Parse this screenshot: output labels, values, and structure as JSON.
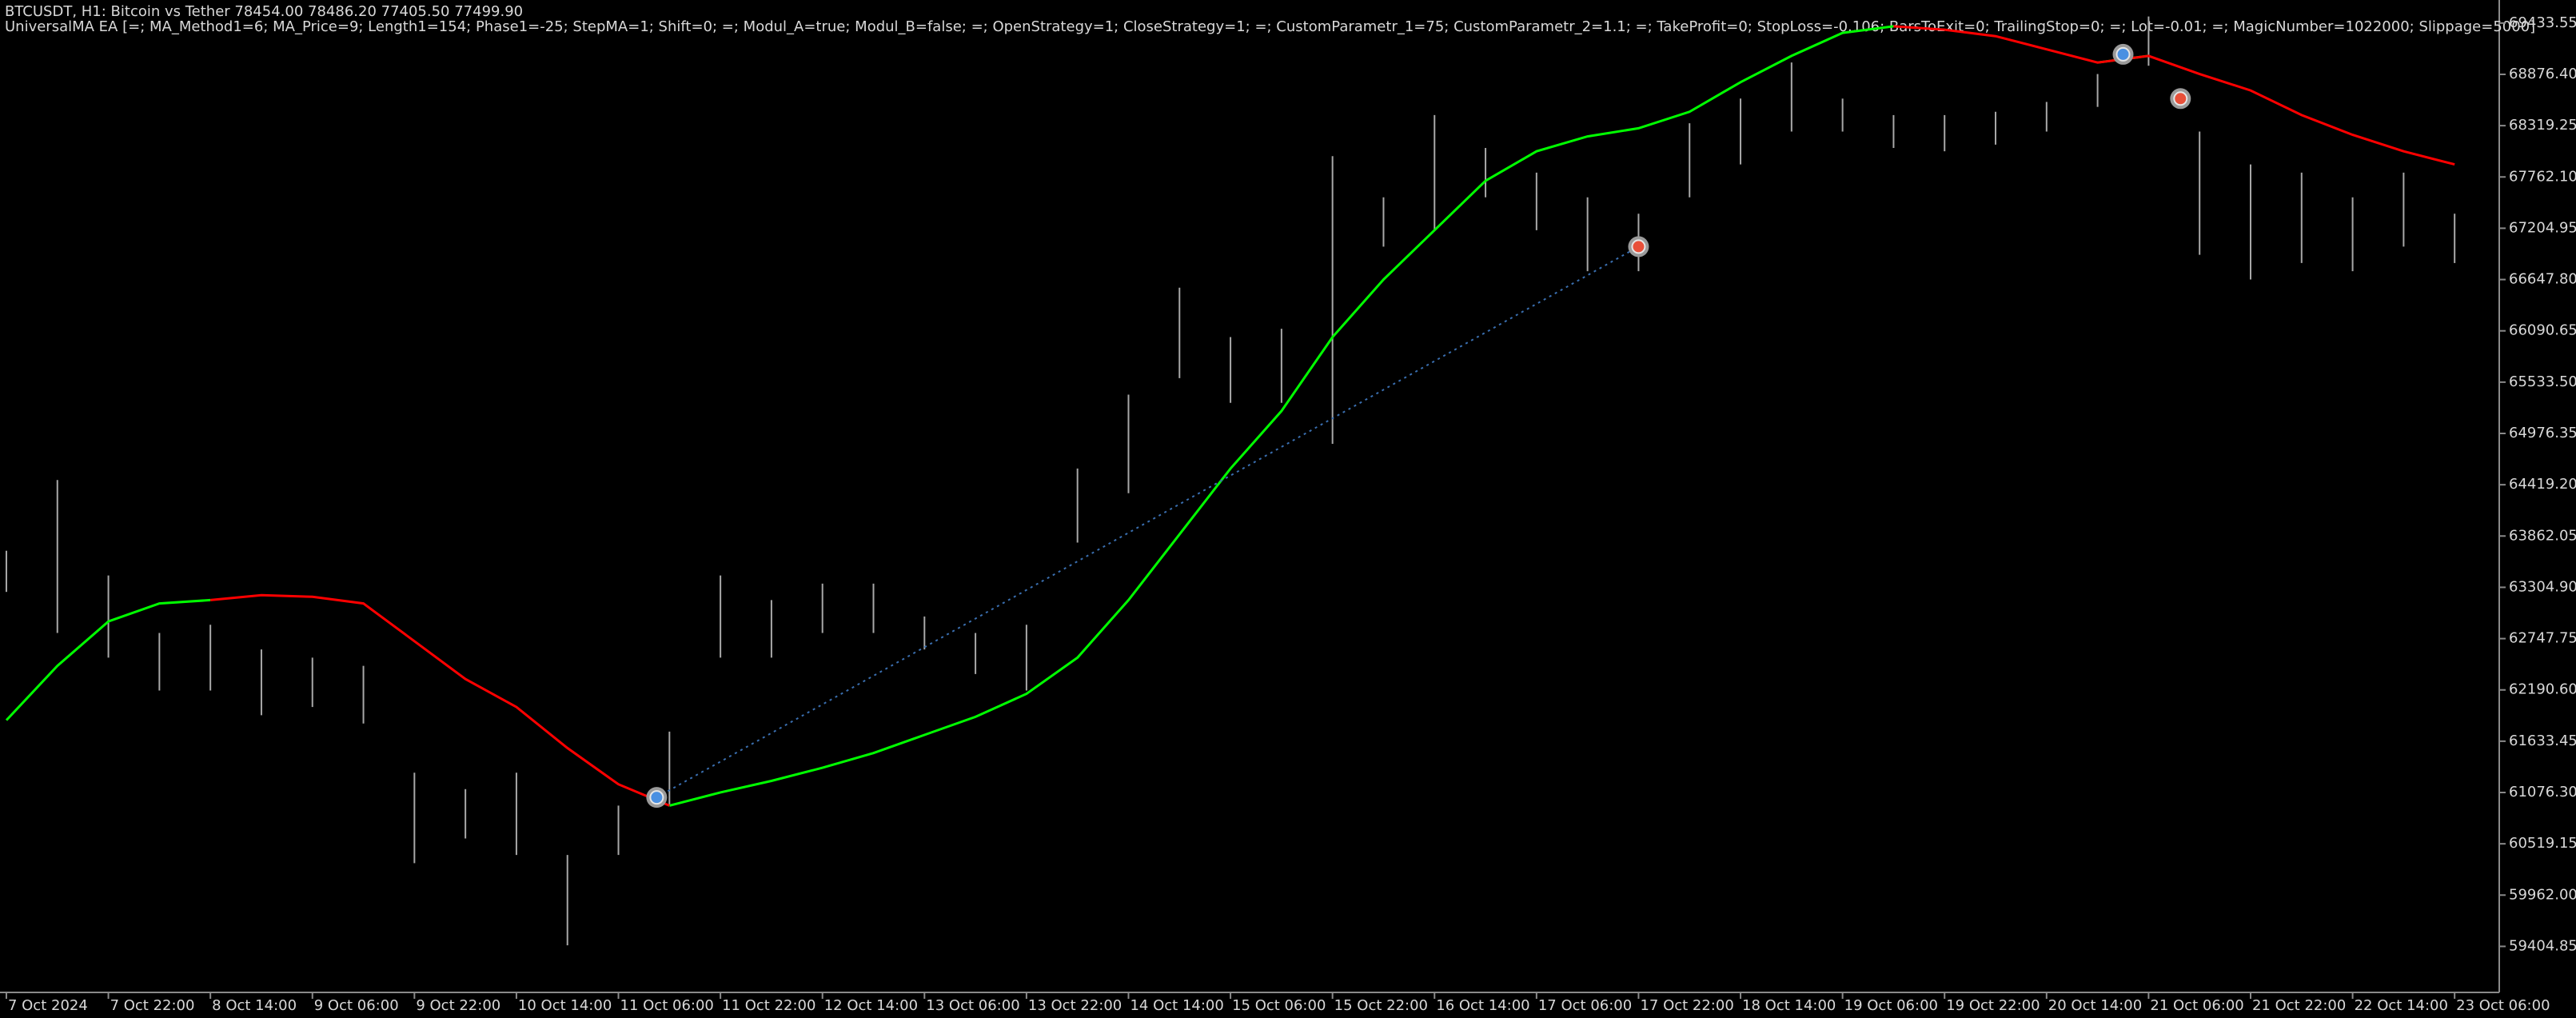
{
  "chart_data": {
    "type": "ohlc",
    "title": "BTCUSDT, H1:  Bitcoin vs Tether  78454.00 78486.20 77405.50 77499.90",
    "subtitle": "UniversalMA EA [=; MA_Method1=6; MA_Price=9; Length1=154; Phase1=-25; StepMA=1; Shift=0; =; Modul_A=true; Modul_B=false; =; OpenStrategy=1; CloseStrategy=1; =; CustomParametr_1=75; CustomParametr_2=1.1; =; TakeProfit=0; StopLoss=-0.106; BarsToExit=0; TrailingStop=0; =; Lot=-0.01; =; MagicNumber=1022000; Slippage=5000]",
    "x": [
      "2024-10-07 06:00",
      "2024-10-07 14:00",
      "2024-10-07 22:00",
      "2024-10-08 06:00",
      "2024-10-08 14:00",
      "2024-10-08 22:00",
      "2024-10-09 06:00",
      "2024-10-09 14:00",
      "2024-10-09 22:00",
      "2024-10-10 06:00",
      "2024-10-10 14:00",
      "2024-10-10 22:00",
      "2024-10-11 06:00",
      "2024-10-11 14:00",
      "2024-10-11 22:00",
      "2024-10-12 06:00",
      "2024-10-12 14:00",
      "2024-10-12 22:00",
      "2024-10-13 06:00",
      "2024-10-13 14:00",
      "2024-10-13 22:00",
      "2024-10-14 06:00",
      "2024-10-14 14:00",
      "2024-10-14 22:00",
      "2024-10-15 06:00",
      "2024-10-15 14:00",
      "2024-10-15 22:00",
      "2024-10-16 06:00",
      "2024-10-16 14:00",
      "2024-10-16 22:00",
      "2024-10-17 06:00",
      "2024-10-17 14:00",
      "2024-10-17 22:00",
      "2024-10-18 06:00",
      "2024-10-18 14:00",
      "2024-10-18 22:00",
      "2024-10-19 06:00",
      "2024-10-19 14:00",
      "2024-10-19 22:00",
      "2024-10-20 06:00",
      "2024-10-20 14:00",
      "2024-10-20 22:00",
      "2024-10-21 06:00",
      "2024-10-21 14:00",
      "2024-10-21 22:00",
      "2024-10-22 06:00",
      "2024-10-22 14:00",
      "2024-10-22 22:00",
      "2024-10-23 06:00"
    ],
    "high": [
      63702,
      64470,
      63434,
      62809,
      62898,
      62630,
      62541,
      62452,
      61291,
      61113,
      61291,
      60398,
      60934,
      61738,
      63434,
      63166,
      63345,
      63345,
      62988,
      62809,
      62898,
      64595,
      65398,
      66559,
      66023,
      66113,
      67988,
      67541,
      68434,
      68077,
      67809,
      67541,
      67363,
      68345,
      68613,
      69005,
      68613,
      68434,
      68434,
      68470,
      68577,
      68880,
      69505,
      68255,
      67898,
      67809,
      67541,
      67809,
      67363
    ],
    "low": [
      63255,
      62809,
      62541,
      62184,
      62184,
      61916,
      62005,
      61826,
      60309,
      60577,
      60398,
      59416,
      60398,
      60934,
      62541,
      62541,
      62809,
      62809,
      62630,
      62363,
      62184,
      63791,
      64327,
      65577,
      65309,
      65309,
      64863,
      67005,
      67184,
      67541,
      67184,
      66738,
      66738,
      67541,
      67898,
      68255,
      68255,
      68077,
      68041,
      68113,
      68255,
      68523,
      68970,
      66916,
      66648,
      66827,
      66738,
      67005,
      66827
    ],
    "bar_color": "#a8a8a8",
    "ma_up": {
      "color": "#00ff00",
      "values": [
        61862,
        62452,
        62934,
        63130,
        63166,
        null,
        null,
        null,
        null,
        null,
        null,
        null,
        null,
        60934,
        61077,
        61202,
        61345,
        61505,
        61702,
        61898,
        62148,
        62541,
        63166,
        63880,
        64595,
        65220,
        66023,
        66648,
        67184,
        67720,
        68041,
        68202,
        68291,
        68470,
        68791,
        69077,
        69327,
        69398,
        null,
        null,
        null,
        69005,
        69077,
        null,
        null,
        null,
        null,
        null,
        null
      ]
    },
    "ma_down": {
      "color": "#ff0000",
      "values": [
        null,
        null,
        null,
        null,
        63166,
        63220,
        63202,
        63130,
        62720,
        62309,
        62005,
        61559,
        61166,
        60934,
        null,
        null,
        null,
        null,
        null,
        null,
        null,
        null,
        null,
        null,
        null,
        null,
        null,
        null,
        null,
        null,
        null,
        null,
        null,
        null,
        null,
        null,
        null,
        69398,
        69362,
        69291,
        69148,
        69005,
        69077,
        68880,
        68702,
        68434,
        68220,
        68041,
        67898
      ]
    },
    "trades": {
      "x": [
        "2024-10-11 12:00",
        "2024-10-17 22:00",
        "2024-10-21 02:00",
        "2024-10-21 11:00"
      ],
      "values": [
        61023,
        67005,
        69094,
        68613
      ],
      "colors": [
        "#4a90e2",
        "#e8503a",
        "#4a90e2",
        "#e8503a"
      ]
    },
    "xlim": [
      "2024-10-07 05:00",
      "2024-10-23 13:00"
    ],
    "ylim": [
      58905,
      69684
    ],
    "xticks": [
      {
        "value": "2024-10-07 06:00",
        "label": "7 Oct 2024"
      },
      {
        "value": "2024-10-07 22:00",
        "label": "7 Oct 22:00"
      },
      {
        "value": "2024-10-08 14:00",
        "label": "8 Oct 14:00"
      },
      {
        "value": "2024-10-09 06:00",
        "label": "9 Oct 06:00"
      },
      {
        "value": "2024-10-09 22:00",
        "label": "9 Oct 22:00"
      },
      {
        "value": "2024-10-10 14:00",
        "label": "10 Oct 14:00"
      },
      {
        "value": "2024-10-11 06:00",
        "label": "11 Oct 06:00"
      },
      {
        "value": "2024-10-11 22:00",
        "label": "11 Oct 22:00"
      },
      {
        "value": "2024-10-12 14:00",
        "label": "12 Oct 14:00"
      },
      {
        "value": "2024-10-13 06:00",
        "label": "13 Oct 06:00"
      },
      {
        "value": "2024-10-13 22:00",
        "label": "13 Oct 22:00"
      },
      {
        "value": "2024-10-14 14:00",
        "label": "14 Oct 14:00"
      },
      {
        "value": "2024-10-15 06:00",
        "label": "15 Oct 06:00"
      },
      {
        "value": "2024-10-15 22:00",
        "label": "15 Oct 22:00"
      },
      {
        "value": "2024-10-16 14:00",
        "label": "16 Oct 14:00"
      },
      {
        "value": "2024-10-17 06:00",
        "label": "17 Oct 06:00"
      },
      {
        "value": "2024-10-17 22:00",
        "label": "17 Oct 22:00"
      },
      {
        "value": "2024-10-18 14:00",
        "label": "18 Oct 14:00"
      },
      {
        "value": "2024-10-19 06:00",
        "label": "19 Oct 06:00"
      },
      {
        "value": "2024-10-19 22:00",
        "label": "19 Oct 22:00"
      },
      {
        "value": "2024-10-20 14:00",
        "label": "20 Oct 14:00"
      },
      {
        "value": "2024-10-21 06:00",
        "label": "21 Oct 06:00"
      },
      {
        "value": "2024-10-21 22:00",
        "label": "21 Oct 22:00"
      },
      {
        "value": "2024-10-22 14:00",
        "label": "22 Oct 14:00"
      },
      {
        "value": "2024-10-23 06:00",
        "label": "23 Oct 06:00"
      }
    ],
    "yticks": [
      69433.55,
      {
        "value": 68876.4,
        "label": "68876.40"
      },
      68319.25,
      {
        "value": 67762.1,
        "label": "67762.10"
      },
      67204.95,
      {
        "value": 66647.8,
        "label": "66647.80"
      },
      66090.65,
      {
        "value": 65533.5,
        "label": "65533.50"
      },
      64976.35,
      {
        "value": 64419.2,
        "label": "64419.20"
      },
      63862.05,
      {
        "value": 63304.9,
        "label": "63304.90"
      },
      62747.75,
      {
        "value": 62190.6,
        "label": "62190.60"
      },
      61633.45,
      {
        "value": 61076.3,
        "label": "61076.30"
      },
      60519.15,
      {
        "value": 59962,
        "label": "59962.00"
      },
      59404.85
    ]
  }
}
